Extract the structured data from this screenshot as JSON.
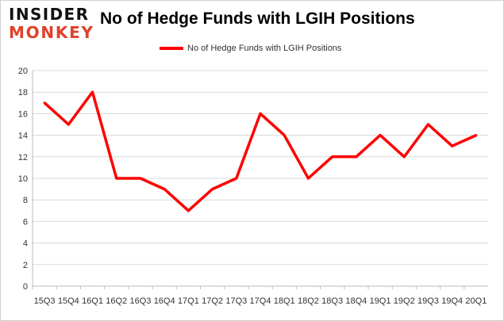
{
  "logo": {
    "line1": "INSIDER",
    "line2": "MONKEY"
  },
  "chart_data": {
    "type": "line",
    "title": "No of Hedge Funds with LGIH Positions",
    "categories": [
      "15Q3",
      "15Q4",
      "16Q1",
      "16Q2",
      "16Q3",
      "16Q4",
      "17Q1",
      "17Q2",
      "17Q3",
      "17Q4",
      "18Q1",
      "18Q2",
      "18Q3",
      "18Q4",
      "19Q1",
      "19Q2",
      "19Q3",
      "19Q4",
      "20Q1"
    ],
    "series": [
      {
        "name": "No of Hedge Funds with LGIH Positions",
        "values": [
          17,
          15,
          18,
          10,
          10,
          9,
          7,
          9,
          10,
          16,
          14,
          10,
          12,
          12,
          14,
          12,
          15,
          13,
          14
        ],
        "color": "#ff0000"
      }
    ],
    "ylim": [
      0,
      20
    ],
    "yticks": [
      0,
      2,
      4,
      6,
      8,
      10,
      12,
      14,
      16,
      18,
      20
    ],
    "grid": true,
    "legend": "top-center"
  }
}
